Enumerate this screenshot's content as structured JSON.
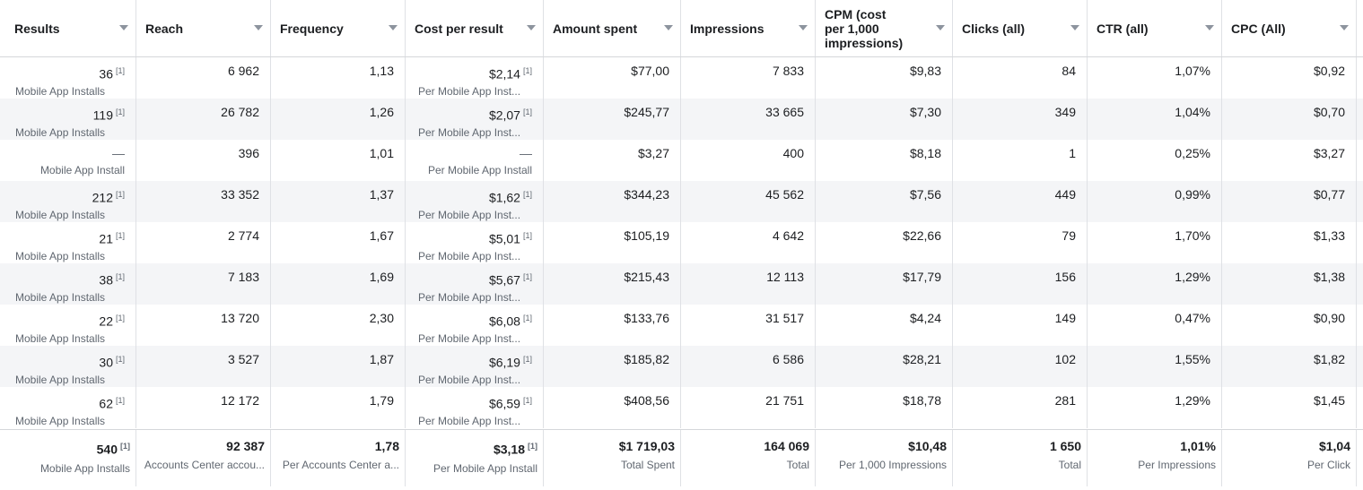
{
  "columns": [
    {
      "key": "results",
      "label": "Results"
    },
    {
      "key": "reach",
      "label": "Reach"
    },
    {
      "key": "frequency",
      "label": "Frequency"
    },
    {
      "key": "cost_per_result",
      "label": "Cost per result"
    },
    {
      "key": "amount_spent",
      "label": "Amount spent"
    },
    {
      "key": "impressions",
      "label": "Impressions"
    },
    {
      "key": "cpm",
      "label": "CPM (cost per 1,000 impressions)"
    },
    {
      "key": "clicks",
      "label": "Clicks (all)"
    },
    {
      "key": "ctr",
      "label": "CTR (all)"
    },
    {
      "key": "cpc",
      "label": "CPC (All)"
    }
  ],
  "rows": [
    {
      "results": "36",
      "results_sup": "[1]",
      "results_sub": "Mobile App Installs",
      "reach": "6 962",
      "frequency": "1,13",
      "cost_per_result": "$2,14",
      "cpr_sup": "[1]",
      "cpr_sub": "Per Mobile App Inst...",
      "amount_spent": "$77,00",
      "impressions": "7 833",
      "cpm": "$9,83",
      "clicks": "84",
      "ctr": "1,07%",
      "cpc": "$0,92"
    },
    {
      "results": "119",
      "results_sup": "[1]",
      "results_sub": "Mobile App Installs",
      "reach": "26 782",
      "frequency": "1,26",
      "cost_per_result": "$2,07",
      "cpr_sup": "[1]",
      "cpr_sub": "Per Mobile App Inst...",
      "amount_spent": "$245,77",
      "impressions": "33 665",
      "cpm": "$7,30",
      "clicks": "349",
      "ctr": "1,04%",
      "cpc": "$0,70"
    },
    {
      "results": "—",
      "results_sup": "",
      "results_sub": "Mobile App Install",
      "reach": "396",
      "frequency": "1,01",
      "cost_per_result": "—",
      "cpr_sup": "",
      "cpr_sub": "Per Mobile App Install",
      "amount_spent": "$3,27",
      "impressions": "400",
      "cpm": "$8,18",
      "clicks": "1",
      "ctr": "0,25%",
      "cpc": "$3,27"
    },
    {
      "results": "212",
      "results_sup": "[1]",
      "results_sub": "Mobile App Installs",
      "reach": "33 352",
      "frequency": "1,37",
      "cost_per_result": "$1,62",
      "cpr_sup": "[1]",
      "cpr_sub": "Per Mobile App Inst...",
      "amount_spent": "$344,23",
      "impressions": "45 562",
      "cpm": "$7,56",
      "clicks": "449",
      "ctr": "0,99%",
      "cpc": "$0,77"
    },
    {
      "results": "21",
      "results_sup": "[1]",
      "results_sub": "Mobile App Installs",
      "reach": "2 774",
      "frequency": "1,67",
      "cost_per_result": "$5,01",
      "cpr_sup": "[1]",
      "cpr_sub": "Per Mobile App Inst...",
      "amount_spent": "$105,19",
      "impressions": "4 642",
      "cpm": "$22,66",
      "clicks": "79",
      "ctr": "1,70%",
      "cpc": "$1,33"
    },
    {
      "results": "38",
      "results_sup": "[1]",
      "results_sub": "Mobile App Installs",
      "reach": "7 183",
      "frequency": "1,69",
      "cost_per_result": "$5,67",
      "cpr_sup": "[1]",
      "cpr_sub": "Per Mobile App Inst...",
      "amount_spent": "$215,43",
      "impressions": "12 113",
      "cpm": "$17,79",
      "clicks": "156",
      "ctr": "1,29%",
      "cpc": "$1,38"
    },
    {
      "results": "22",
      "results_sup": "[1]",
      "results_sub": "Mobile App Installs",
      "reach": "13 720",
      "frequency": "2,30",
      "cost_per_result": "$6,08",
      "cpr_sup": "[1]",
      "cpr_sub": "Per Mobile App Inst...",
      "amount_spent": "$133,76",
      "impressions": "31 517",
      "cpm": "$4,24",
      "clicks": "149",
      "ctr": "0,47%",
      "cpc": "$0,90"
    },
    {
      "results": "30",
      "results_sup": "[1]",
      "results_sub": "Mobile App Installs",
      "reach": "3 527",
      "frequency": "1,87",
      "cost_per_result": "$6,19",
      "cpr_sup": "[1]",
      "cpr_sub": "Per Mobile App Inst...",
      "amount_spent": "$185,82",
      "impressions": "6 586",
      "cpm": "$28,21",
      "clicks": "102",
      "ctr": "1,55%",
      "cpc": "$1,82"
    },
    {
      "results": "62",
      "results_sup": "[1]",
      "results_sub": "Mobile App Installs",
      "reach": "12 172",
      "frequency": "1,79",
      "cost_per_result": "$6,59",
      "cpr_sup": "[1]",
      "cpr_sub": "Per Mobile App Inst...",
      "amount_spent": "$408,56",
      "impressions": "21 751",
      "cpm": "$18,78",
      "clicks": "281",
      "ctr": "1,29%",
      "cpc": "$1,45"
    }
  ],
  "totals": {
    "results": "540",
    "results_sup": "[1]",
    "results_sub": "Mobile App Installs",
    "reach": "92 387",
    "reach_sub": "Accounts Center accou...",
    "frequency": "1,78",
    "frequency_sub": "Per Accounts Center a...",
    "cost_per_result": "$3,18",
    "cpr_sup": "[1]",
    "cpr_sub": "Per Mobile App Install",
    "amount_spent": "$1 719,03",
    "amount_spent_sub": "Total Spent",
    "impressions": "164 069",
    "impressions_sub": "Total",
    "cpm": "$10,48",
    "cpm_sub": "Per 1,000 Impressions",
    "clicks": "1 650",
    "clicks_sub": "Total",
    "ctr": "1,01%",
    "ctr_sub": "Per Impressions",
    "cpc": "$1,04",
    "cpc_sub": "Per Click"
  }
}
